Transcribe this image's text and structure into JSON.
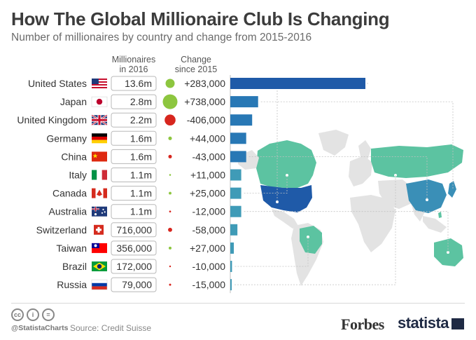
{
  "title": "How The Global Millionaire Club Is Changing",
  "subtitle": "Number of millionaires by country and change from 2015-2016",
  "headers": {
    "millionaires": [
      "Millionaires",
      "in 2016"
    ],
    "change": [
      "Change",
      "since 2015"
    ]
  },
  "colors": {
    "bar": "#1a6fb0",
    "positive": "#8dc63f",
    "negative": "#d7261e",
    "map_land": "#e3e3e3",
    "map_teal": "#5cc3a1",
    "map_steel": "#3a8fb7",
    "map_navy": "#1f5aa8"
  },
  "chart_data": {
    "type": "bar",
    "orientation": "horizontal",
    "categories": [
      "United States",
      "Japan",
      "United Kingdom",
      "Germany",
      "China",
      "Italy",
      "Canada",
      "Australia",
      "Switzerland",
      "Taiwan",
      "Brazil",
      "Russia"
    ],
    "values": [
      13600000,
      2800000,
      2200000,
      1600000,
      1600000,
      1100000,
      1100000,
      1100000,
      716000,
      356000,
      172000,
      79000
    ],
    "value_labels": [
      "13.6m",
      "2.8m",
      "2.2m",
      "1.6m",
      "1.6m",
      "1.1m",
      "1.1m",
      "1.1m",
      "716,000",
      "356,000",
      "172,000",
      "79,000"
    ],
    "change": [
      283000,
      738000,
      -406000,
      44000,
      -43000,
      11000,
      25000,
      -12000,
      -58000,
      27000,
      -10000,
      -15000
    ],
    "change_labels": [
      "+283,000",
      "+738,000",
      "-406,000",
      "+44,000",
      "-43,000",
      "+11,000",
      "+25,000",
      "-12,000",
      "-58,000",
      "+27,000",
      "-10,000",
      "-15,000"
    ],
    "flags": [
      "us-flag",
      "japan-flag",
      "uk-flag",
      "germany-flag",
      "china-flag",
      "italy-flag",
      "canada-flag",
      "australia-flag",
      "switzerland-flag",
      "taiwan-flag",
      "brazil-flag",
      "russia-flag"
    ]
  },
  "footer": {
    "handle": "@StatistaCharts",
    "source": "Source: Credit Suisse",
    "forbes": "Forbes",
    "statista": "statista",
    "cc_icons": [
      "cc",
      "i",
      "="
    ]
  }
}
